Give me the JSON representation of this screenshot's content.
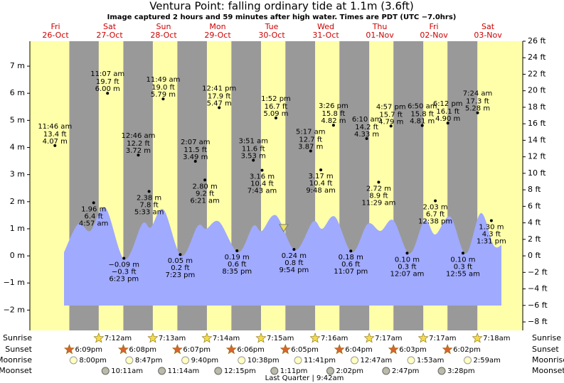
{
  "chart_data": {
    "type": "tide",
    "title": "Ventura Point: falling  ordinary tide at 1.1m (3.6ft)",
    "subtitle": "Image captured 2 hours and 59 minutes after high water. Times are PDT (UTC −7.0hrs)",
    "ylim": [
      -2.75,
      7.92
    ],
    "yticks": [
      {
        "value": -2,
        "label": "−2 m"
      },
      {
        "value": -1,
        "label": "−1 m"
      },
      {
        "value": 0,
        "label": "0 m"
      },
      {
        "value": 1,
        "label": "1 m"
      },
      {
        "value": 2,
        "label": "2 m"
      },
      {
        "value": 3,
        "label": "3 m"
      },
      {
        "value": 4,
        "label": "4 m"
      },
      {
        "value": 5,
        "label": "5 m"
      },
      {
        "value": 6,
        "label": "6 m"
      },
      {
        "value": 7,
        "label": "7 m"
      }
    ],
    "y2lim": [
      -9.03,
      26
    ],
    "y2ticks": [
      {
        "value": 26,
        "label": "26 ft"
      },
      {
        "value": 24,
        "label": "24 ft"
      },
      {
        "value": 22,
        "label": "22 ft"
      },
      {
        "value": 20,
        "label": "20 ft"
      },
      {
        "value": 18,
        "label": "18 ft"
      },
      {
        "value": 16,
        "label": "16 ft"
      },
      {
        "value": 14,
        "label": "14 ft"
      },
      {
        "value": 12,
        "label": "12 ft"
      },
      {
        "value": 10,
        "label": "10 ft"
      },
      {
        "value": 8,
        "label": "8 ft"
      },
      {
        "value": 6,
        "label": "6 ft"
      },
      {
        "value": 4,
        "label": "4 ft"
      },
      {
        "value": 2,
        "label": "2 ft"
      },
      {
        "value": 0,
        "label": "0 ft"
      },
      {
        "value": -2,
        "label": "−2 ft"
      },
      {
        "value": -4,
        "label": "−4 ft"
      },
      {
        "value": -6,
        "label": "−6 ft"
      },
      {
        "value": -8,
        "label": "−8 ft"
      }
    ],
    "row_labels": {
      "sunrise": "Sunrise",
      "sunset": "Sunset",
      "moonrise": "Moonrise",
      "moonset": "Moonset"
    },
    "moon_phase": "Last Quarter | 9:42am",
    "days": [
      {
        "weekday": "Fri",
        "date": "26-Oct",
        "sunset": "6:09pm",
        "moonrise": "8:00pm",
        "tides": [
          {
            "time": "11:46 am",
            "height": 4.07,
            "height_label": "4.07 m",
            "feet": "13.4 ft"
          }
        ]
      },
      {
        "weekday": "Sat",
        "date": "27-Oct",
        "sunrise": "7:12am",
        "sunset": "6:08pm",
        "moonrise": "8:47pm",
        "moonset": "10:11am",
        "tides": [
          {
            "time": "4:57 am",
            "height": 1.96,
            "height_label": "1.96 m",
            "feet": "6.4 ft"
          },
          {
            "time": "11:07 am",
            "height": 6.0,
            "height_label": "6.00 m",
            "feet": "19.7 ft"
          },
          {
            "time": "6:23 pm",
            "height": -0.09,
            "height_label": "−0.09 m",
            "feet": "−0.3 ft"
          }
        ]
      },
      {
        "weekday": "Sun",
        "date": "28-Oct",
        "sunrise": "7:13am",
        "sunset": "6:07pm",
        "moonrise": "9:40pm",
        "moonset": "11:14am",
        "tides": [
          {
            "time": "12:46 am",
            "height": 3.72,
            "height_label": "3.72 m",
            "feet": "12.2 ft"
          },
          {
            "time": "5:33 am",
            "height": 2.38,
            "height_label": "2.38 m",
            "feet": "7.8 ft"
          },
          {
            "time": "11:49 am",
            "height": 5.79,
            "height_label": "5.79 m",
            "feet": "19.0 ft"
          },
          {
            "time": "7:23 pm",
            "height": 0.05,
            "height_label": "0.05 m",
            "feet": "0.2 ft"
          }
        ]
      },
      {
        "weekday": "Mon",
        "date": "29-Oct",
        "sunrise": "7:14am",
        "sunset": "6:06pm",
        "moonrise": "10:38pm",
        "moonset": "12:15pm",
        "tides": [
          {
            "time": "2:07 am",
            "height": 3.49,
            "height_label": "3.49 m",
            "feet": "11.5 ft"
          },
          {
            "time": "6:21 am",
            "height": 2.8,
            "height_label": "2.80 m",
            "feet": "9.2 ft"
          },
          {
            "time": "12:41 pm",
            "height": 5.47,
            "height_label": "5.47 m",
            "feet": "17.9 ft"
          },
          {
            "time": "8:35 pm",
            "height": 0.19,
            "height_label": "0.19 m",
            "feet": "0.6 ft"
          }
        ]
      },
      {
        "weekday": "Tue",
        "date": "30-Oct",
        "sunrise": "7:15am",
        "sunset": "6:05pm",
        "moonrise": "11:41pm",
        "moonset": "1:11pm",
        "tides": [
          {
            "time": "3:51 am",
            "height": 3.53,
            "height_label": "3.53 m",
            "feet": "11.6 ft"
          },
          {
            "time": "7:43 am",
            "height": 3.16,
            "height_label": "3.16 m",
            "feet": "10.4 ft"
          },
          {
            "time": "1:52 pm",
            "height": 5.09,
            "height_label": "5.09 m",
            "feet": "16.7 ft"
          },
          {
            "time": "9:54 pm",
            "height": 0.24,
            "height_label": "0.24 m",
            "feet": "0.8 ft"
          }
        ]
      },
      {
        "weekday": "Wed",
        "date": "31-Oct",
        "sunrise": "7:16am",
        "sunset": "6:04pm",
        "moonset": "2:02pm",
        "tides": [
          {
            "time": "5:17 am",
            "height": 3.87,
            "height_label": "3.87 m",
            "feet": "12.7 ft"
          },
          {
            "time": "9:48 am",
            "height": 3.17,
            "height_label": "3.17 m",
            "feet": "10.4 ft"
          },
          {
            "time": "3:26 pm",
            "height": 4.82,
            "height_label": "4.82 m",
            "feet": "15.8 ft"
          },
          {
            "time": "11:07 pm",
            "height": 0.18,
            "height_label": "0.18 m",
            "feet": "0.6 ft"
          }
        ]
      },
      {
        "weekday": "Thu",
        "date": "01-Nov",
        "sunrise": "7:17am",
        "sunset": "6:03pm",
        "moonrise": "12:47am",
        "moonset": "2:47pm",
        "tides": [
          {
            "time": "6:10 am",
            "height": 4.33,
            "height_label": "4.33 m",
            "feet": "14.2 ft"
          },
          {
            "time": "11:29 am",
            "height": 2.72,
            "height_label": "2.72 m",
            "feet": "8.9 ft"
          },
          {
            "time": "4:57 pm",
            "height": 4.79,
            "height_label": "4.79 m",
            "feet": "15.7 ft"
          }
        ]
      },
      {
        "weekday": "Fri",
        "date": "02-Nov",
        "sunrise": "7:17am",
        "sunset": "6:02pm",
        "moonrise": "1:53am",
        "moonset": "3:28pm",
        "tides": [
          {
            "time": "12:07 am",
            "height": 0.1,
            "height_label": "0.10 m",
            "feet": "0.3 ft"
          },
          {
            "time": "6:50 am",
            "height": 4.81,
            "height_label": "4.81 m",
            "feet": "15.8 ft"
          },
          {
            "time": "12:38 pm",
            "height": 2.03,
            "height_label": "2.03 m",
            "feet": "6.7 ft"
          },
          {
            "time": "6:12 pm",
            "height": 4.9,
            "height_label": "4.90 m",
            "feet": "16.1 ft"
          }
        ]
      },
      {
        "weekday": "Sat",
        "date": "03-Nov",
        "sunrise": "7:18am",
        "moonrise": "2:59am",
        "tides": [
          {
            "time": "12:55 am",
            "height": 0.1,
            "height_label": "0.10 m",
            "feet": "0.3 ft"
          },
          {
            "time": "7:24 am",
            "height": 5.28,
            "height_label": "5.28 m",
            "feet": "17.3 ft"
          },
          {
            "time": "1:31 pm",
            "height": 1.3,
            "height_label": "1.30 m",
            "feet": "4.3 ft"
          }
        ]
      }
    ]
  }
}
